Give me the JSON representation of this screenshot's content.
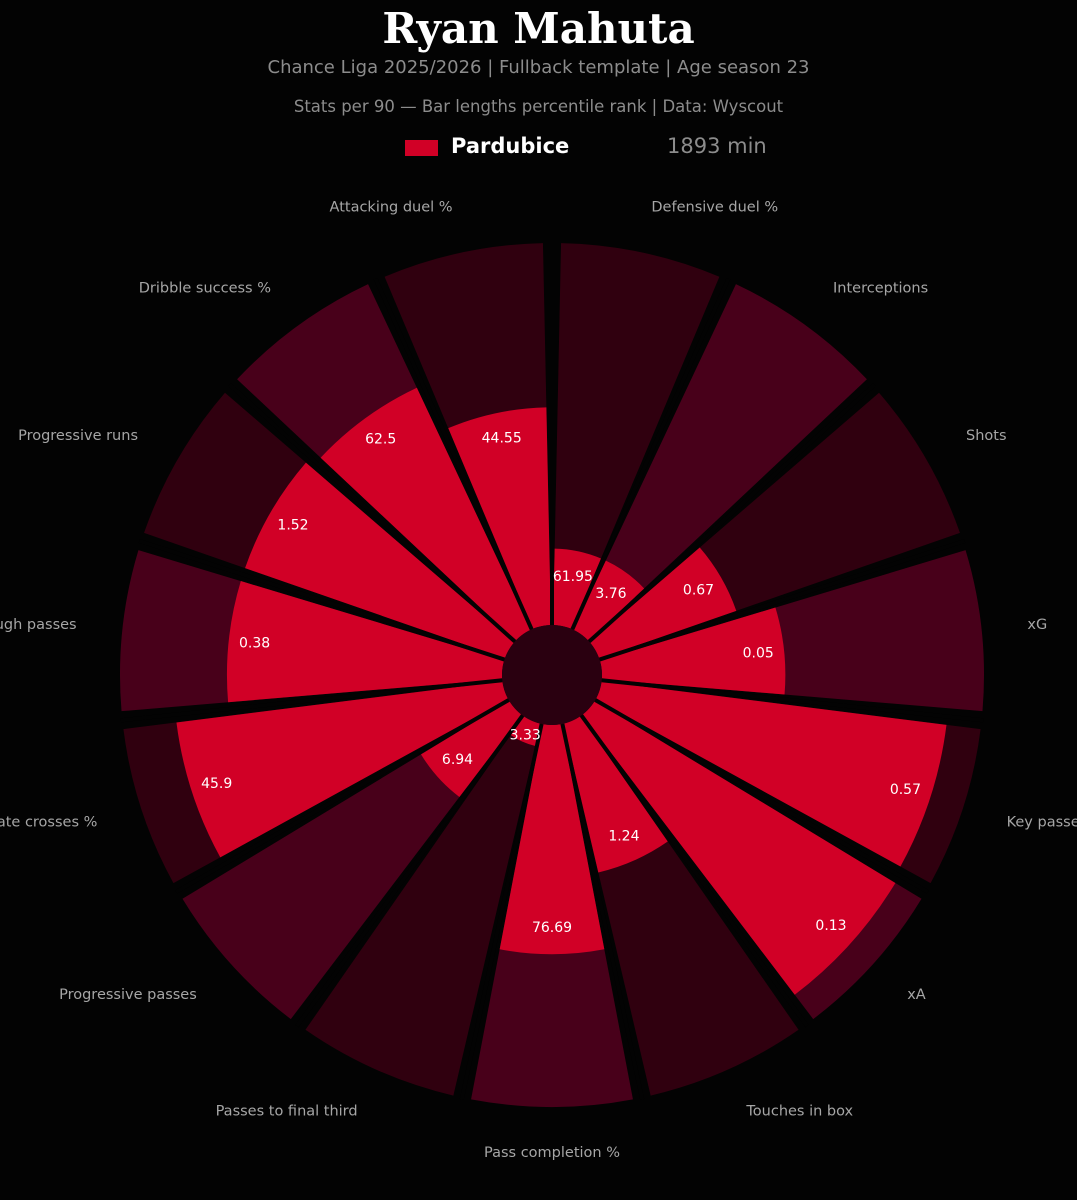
{
  "header": {
    "title": "Ryan Mahuta",
    "subtitle_line1": "Chance Liga 2025/2026  |  Fullback template  |  Age season 23",
    "subtitle_line2": "Stats per 90 — Bar lengths percentile rank  |  Data: Wyscout"
  },
  "legend": {
    "team": "Pardubice",
    "minutes": "1893 min",
    "team_color": "#d10026"
  },
  "chart_data": {
    "type": "polar-bar",
    "title": "Ryan Mahuta",
    "value_scale": "percentile rank (0-100), estimated from bar lengths",
    "colors": {
      "bar": "#d10026",
      "background_alt": [
        "#30000f",
        "#48001a"
      ],
      "hub": "#2a0010"
    },
    "categories": [
      "Defensive duel %",
      "Interceptions",
      "Shots",
      "xG",
      "Key passes",
      "xA",
      "Touches in box",
      "Pass completion %",
      "Passes to final third",
      "Progressive passes",
      "Accurate crosses %",
      "Through passes",
      "Progressive runs",
      "Dribble success %",
      "Attacking duel %"
    ],
    "values": [
      "61.95",
      "3.76",
      "0.67",
      "0.05",
      "0.57",
      "0.13",
      "1.24",
      "76.69",
      "3.33",
      "6.94",
      "45.9",
      "0.38",
      "1.52",
      "62.5",
      "44.55"
    ],
    "percentiles": [
      20,
      20,
      38,
      48,
      91,
      92,
      40,
      60,
      6,
      27,
      86,
      72,
      72,
      70,
      57
    ]
  }
}
